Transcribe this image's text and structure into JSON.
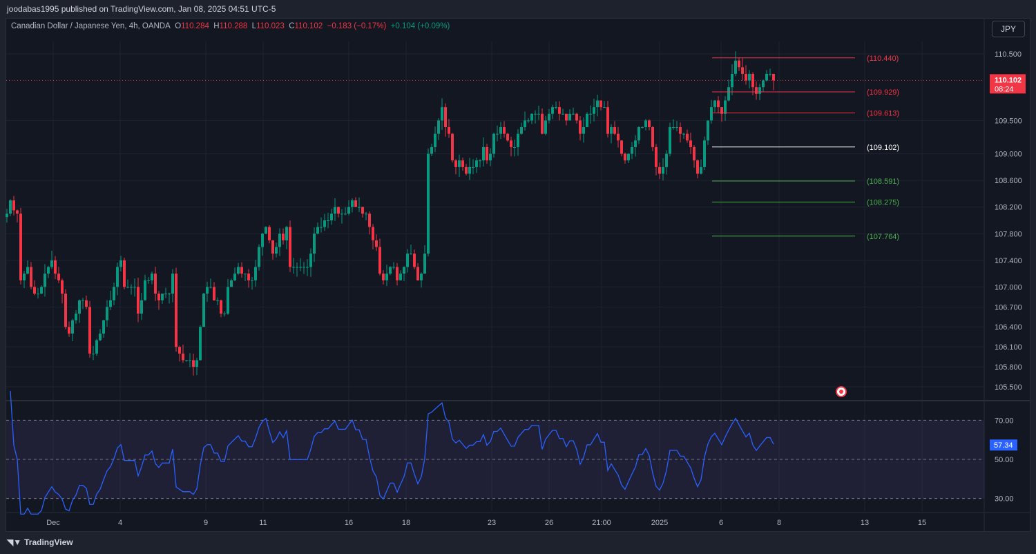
{
  "publish_line": "joodabas1995 published on TradingView.com, Jan 08, 2025 04:51 UTC-5",
  "legend": {
    "symbol": "Canadian Dollar / Japanese Yen, 4h, OANDA",
    "o_label": "O",
    "o": "110.284",
    "h_label": "H",
    "h": "110.288",
    "l_label": "L",
    "l": "110.023",
    "c_label": "C",
    "c": "110.102",
    "change": "−0.183 (−0.17%)",
    "change2": "+0.104 (+0.09%)"
  },
  "currency_button": "JPY",
  "price_tag": {
    "price": "110.102",
    "countdown": "08:24"
  },
  "rsi_tag": "57.34",
  "footer_brand": "TradingView",
  "colors": {
    "up": "#089981",
    "down": "#f23645",
    "rsi": "#2962ff",
    "bg": "#131722"
  },
  "chart_data": {
    "type": "candlestick",
    "title": "Canadian Dollar / Japanese Yen, 4h, OANDA",
    "y_ticks": [
      "110.500",
      "109.500",
      "109.000",
      "108.600",
      "108.200",
      "107.800",
      "107.400",
      "107.000",
      "106.700",
      "106.400",
      "106.100",
      "105.800",
      "105.500"
    ],
    "ylim": [
      105.3,
      110.85
    ],
    "x_ticks": [
      "Dec",
      "4",
      "9",
      "11",
      "16",
      "18",
      "23",
      "26",
      "21:00",
      "2025",
      "6",
      "8",
      "13",
      "15"
    ],
    "closes": [
      108.1,
      108.3,
      108.15,
      108.1,
      107.1,
      107.2,
      107.3,
      107.0,
      106.9,
      106.9,
      107.0,
      107.2,
      107.3,
      107.4,
      107.2,
      107.1,
      106.9,
      106.4,
      106.3,
      106.5,
      106.6,
      106.8,
      106.8,
      106.7,
      106.0,
      106.0,
      106.2,
      106.3,
      106.5,
      106.7,
      106.8,
      107.0,
      107.3,
      107.4,
      107.0,
      107.0,
      107.0,
      107.0,
      106.6,
      106.8,
      107.1,
      107.1,
      107.2,
      106.9,
      106.8,
      106.9,
      106.9,
      106.9,
      107.2,
      106.1,
      106.0,
      105.9,
      105.9,
      105.9,
      105.8,
      105.9,
      106.4,
      106.9,
      107.0,
      107.0,
      106.8,
      106.8,
      106.6,
      106.6,
      107.0,
      107.1,
      107.2,
      107.3,
      107.2,
      107.2,
      107.1,
      107.1,
      107.3,
      107.6,
      107.8,
      107.9,
      107.7,
      107.5,
      107.6,
      107.8,
      107.7,
      107.9,
      107.3,
      107.3,
      107.3,
      107.3,
      107.3,
      107.3,
      107.5,
      107.8,
      107.9,
      107.9,
      108.0,
      108.0,
      108.1,
      108.2,
      108.1,
      108.1,
      108.1,
      108.2,
      108.3,
      108.2,
      108.2,
      108.1,
      108.1,
      107.9,
      107.7,
      107.6,
      107.2,
      107.1,
      107.2,
      107.3,
      107.3,
      107.1,
      107.2,
      107.3,
      107.5,
      107.5,
      107.3,
      107.1,
      107.2,
      107.5,
      109.0,
      109.1,
      109.3,
      109.5,
      109.7,
      109.4,
      109.3,
      108.9,
      108.8,
      108.9,
      108.8,
      108.7,
      108.8,
      108.8,
      108.9,
      108.9,
      109.1,
      108.9,
      109.0,
      109.3,
      109.3,
      109.4,
      109.3,
      109.2,
      109.1,
      109.1,
      109.3,
      109.4,
      109.5,
      109.5,
      109.6,
      109.6,
      109.6,
      109.3,
      109.5,
      109.6,
      109.7,
      109.7,
      109.6,
      109.6,
      109.5,
      109.6,
      109.6,
      109.5,
      109.3,
      109.4,
      109.6,
      109.6,
      109.7,
      109.8,
      109.7,
      109.7,
      109.3,
      109.4,
      109.3,
      109.2,
      109.0,
      108.9,
      109.0,
      109.1,
      109.2,
      109.4,
      109.4,
      109.5,
      109.4,
      109.1,
      108.8,
      108.7,
      108.8,
      109.0,
      109.4,
      109.4,
      109.4,
      109.3,
      109.3,
      109.2,
      109.1,
      108.9,
      108.7,
      108.8,
      109.2,
      109.5,
      109.7,
      109.8,
      109.7,
      109.6,
      109.8,
      110.0,
      110.2,
      110.4,
      110.3,
      110.2,
      110.1,
      110.2,
      110.0,
      109.9,
      110.0,
      110.1,
      110.2,
      110.2,
      110.102
    ],
    "levels": [
      {
        "label": "(110.440)",
        "value": 110.44,
        "color": "#f23645"
      },
      {
        "label": "(109.929)",
        "value": 109.929,
        "color": "#f23645"
      },
      {
        "label": "(109.613)",
        "value": 109.613,
        "color": "#f23645"
      },
      {
        "label": "(109.102)",
        "value": 109.102,
        "color": "#ffffff"
      },
      {
        "label": "(108.591)",
        "value": 108.591,
        "color": "#4caf50"
      },
      {
        "label": "(108.275)",
        "value": 108.275,
        "color": "#4caf50"
      },
      {
        "label": "(107.764)",
        "value": 107.764,
        "color": "#4caf50"
      }
    ],
    "rsi": {
      "ticks": [
        "70.00",
        "50.00",
        "30.00"
      ],
      "levels": [
        70,
        50,
        30
      ],
      "period": 14
    }
  }
}
